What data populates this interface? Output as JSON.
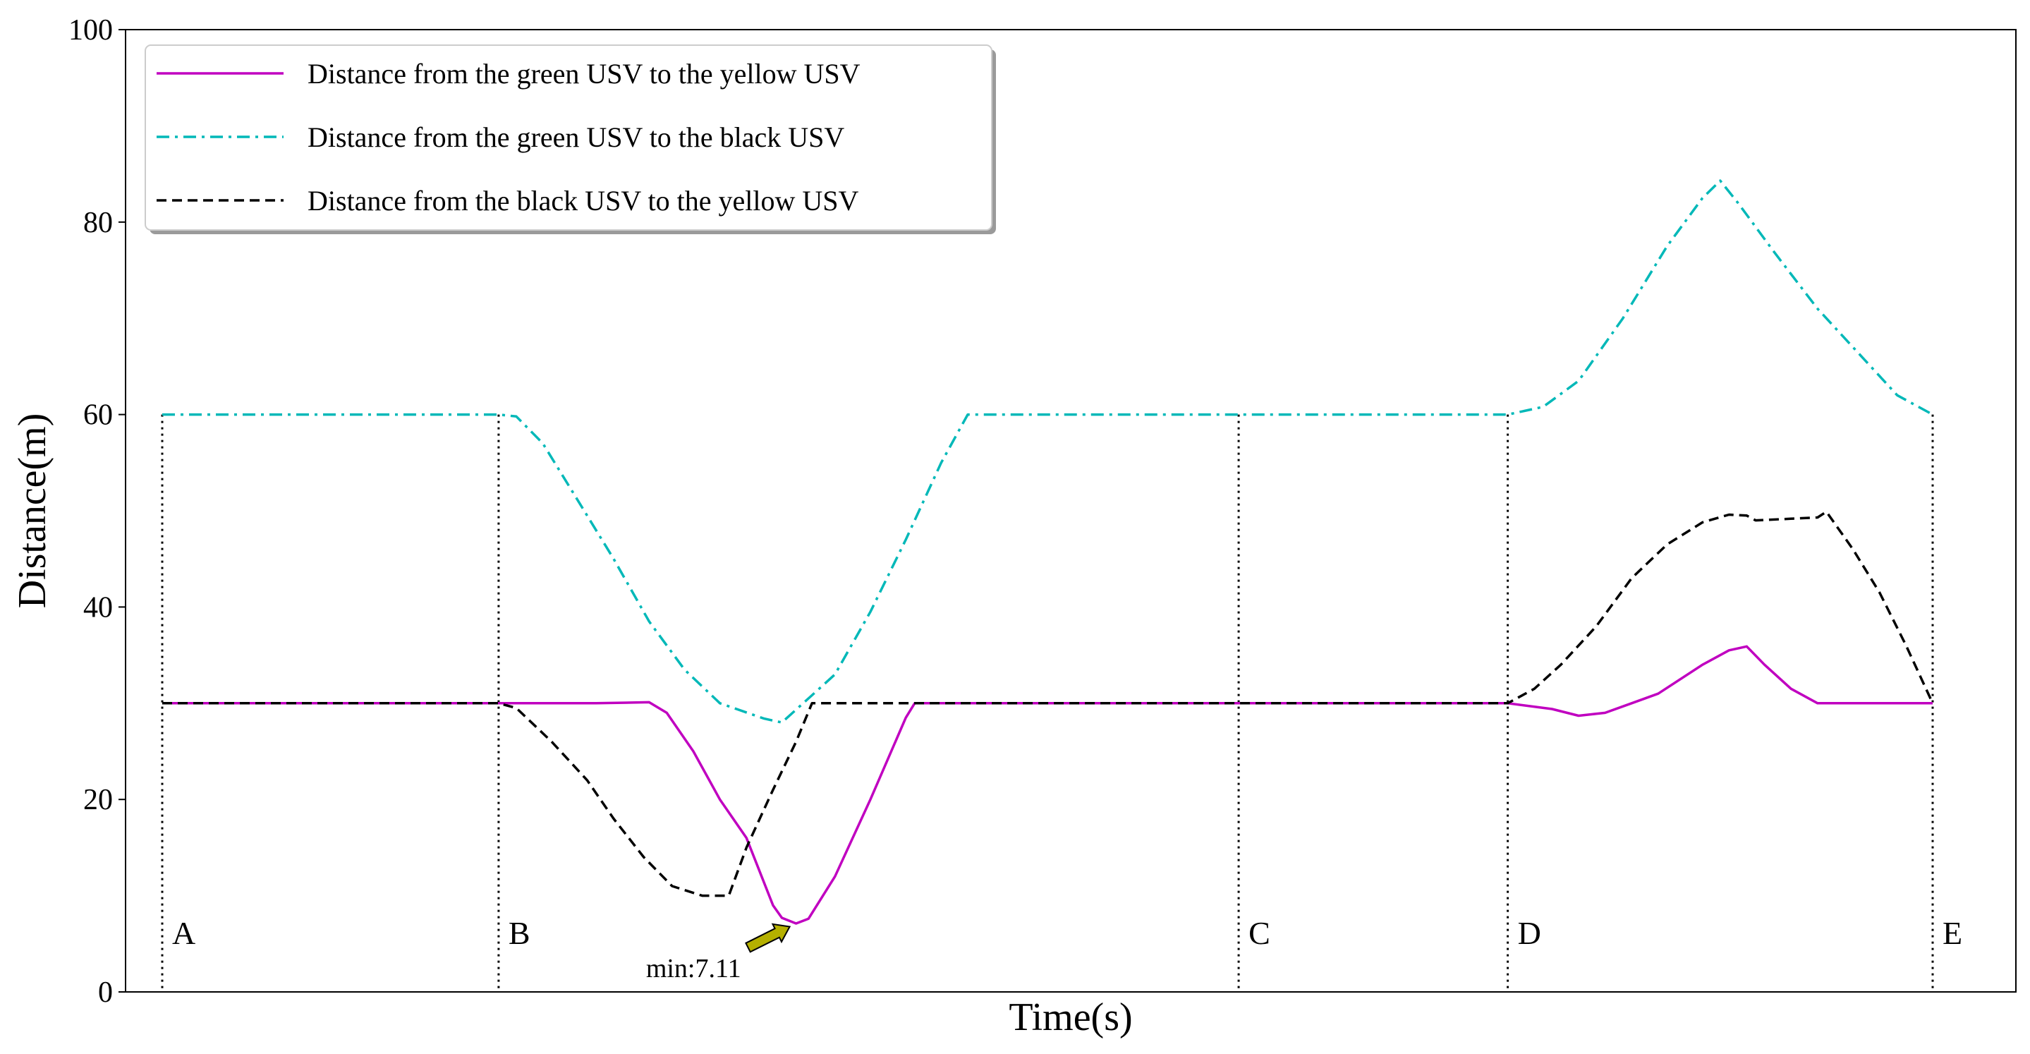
{
  "chart_data": {
    "type": "line",
    "title": "",
    "xlabel": "Time(s)",
    "ylabel": "Distance(m)",
    "xlim": [
      0,
      1000
    ],
    "ylim": [
      0,
      100
    ],
    "yticks": [
      0,
      20,
      40,
      60,
      80,
      100
    ],
    "grid": false,
    "legend_position": "top-left",
    "series": [
      {
        "name": "Distance from the green USV to the yellow USV",
        "color": "#c000c0",
        "style": "solid",
        "points": [
          [
            0,
            30
          ],
          [
            190,
            30
          ],
          [
            245,
            30
          ],
          [
            275,
            30.1
          ],
          [
            285,
            29
          ],
          [
            300,
            25
          ],
          [
            315,
            20
          ],
          [
            330,
            16
          ],
          [
            345,
            9
          ],
          [
            350,
            7.7
          ],
          [
            358,
            7.11
          ],
          [
            365,
            7.6
          ],
          [
            380,
            12
          ],
          [
            400,
            20
          ],
          [
            420,
            28.5
          ],
          [
            425,
            30
          ],
          [
            600,
            30
          ],
          [
            760,
            30
          ],
          [
            785,
            29.4
          ],
          [
            800,
            28.7
          ],
          [
            815,
            29
          ],
          [
            830,
            30
          ],
          [
            845,
            31
          ],
          [
            870,
            34
          ],
          [
            885,
            35.5
          ],
          [
            895,
            35.9
          ],
          [
            905,
            34
          ],
          [
            920,
            31.5
          ],
          [
            935,
            30
          ],
          [
            1000,
            30
          ]
        ]
      },
      {
        "name": "Distance from the green USV to the black USV",
        "color": "#00b8b8",
        "style": "dashdot",
        "points": [
          [
            0,
            60
          ],
          [
            190,
            60
          ],
          [
            200,
            59.8
          ],
          [
            215,
            57
          ],
          [
            235,
            51
          ],
          [
            255,
            45
          ],
          [
            275,
            38.5
          ],
          [
            295,
            33.5
          ],
          [
            315,
            30
          ],
          [
            340,
            28.4
          ],
          [
            350,
            28
          ],
          [
            365,
            30.5
          ],
          [
            380,
            33
          ],
          [
            400,
            39.5
          ],
          [
            420,
            47
          ],
          [
            440,
            55
          ],
          [
            455,
            60
          ],
          [
            600,
            60
          ],
          [
            760,
            60
          ],
          [
            780,
            60.8
          ],
          [
            800,
            63.5
          ],
          [
            825,
            70
          ],
          [
            850,
            77.5
          ],
          [
            870,
            82.5
          ],
          [
            880,
            84.3
          ],
          [
            890,
            82
          ],
          [
            910,
            77
          ],
          [
            935,
            71
          ],
          [
            960,
            66
          ],
          [
            980,
            62
          ],
          [
            1000,
            60
          ]
        ]
      },
      {
        "name": "Distance from the black USV to the yellow USV",
        "color": "#000000",
        "style": "dashed",
        "points": [
          [
            0,
            30
          ],
          [
            190,
            30
          ],
          [
            200,
            29.5
          ],
          [
            220,
            26
          ],
          [
            240,
            22
          ],
          [
            255,
            18
          ],
          [
            272,
            14
          ],
          [
            288,
            11
          ],
          [
            305,
            10
          ],
          [
            320,
            10
          ],
          [
            330,
            15
          ],
          [
            345,
            21
          ],
          [
            358,
            26
          ],
          [
            367,
            30
          ],
          [
            420,
            30
          ],
          [
            600,
            30
          ],
          [
            760,
            30
          ],
          [
            775,
            31.5
          ],
          [
            790,
            34
          ],
          [
            810,
            38
          ],
          [
            830,
            43
          ],
          [
            850,
            46.5
          ],
          [
            870,
            48.8
          ],
          [
            885,
            49.6
          ],
          [
            895,
            49.5
          ],
          [
            900,
            49
          ],
          [
            935,
            49.3
          ],
          [
            940,
            49.9
          ],
          [
            955,
            46
          ],
          [
            970,
            41.5
          ],
          [
            985,
            36
          ],
          [
            995,
            32
          ],
          [
            1000,
            30
          ]
        ]
      }
    ],
    "phase_markers": [
      {
        "label": "A",
        "x": 0,
        "top": 60
      },
      {
        "label": "B",
        "x": 190,
        "top": 60
      },
      {
        "label": "C",
        "x": 608,
        "top": 60
      },
      {
        "label": "D",
        "x": 760,
        "top": 60
      },
      {
        "label": "E",
        "x": 1000,
        "top": 60
      }
    ],
    "annotations": [
      {
        "text": "min:7.11",
        "x": 358,
        "y": 7.11
      }
    ]
  }
}
